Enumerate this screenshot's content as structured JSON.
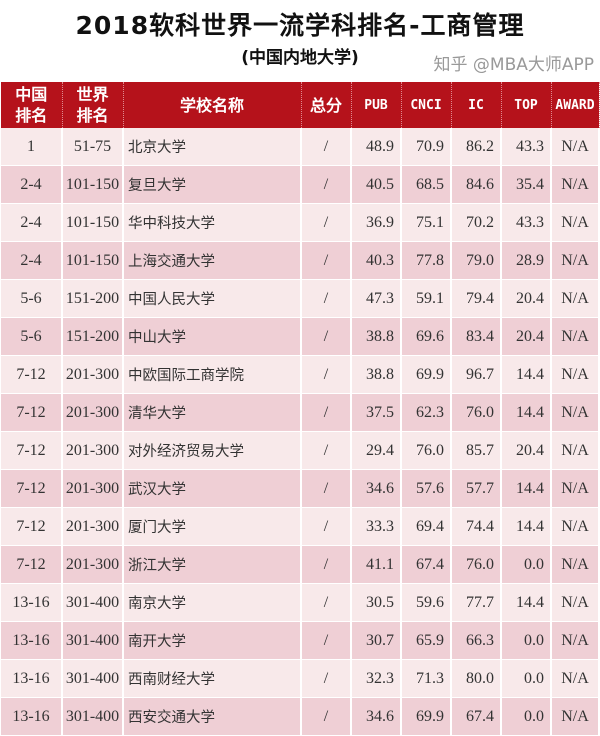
{
  "title": "2018软科世界一流学科排名-工商管理",
  "subtitle": "(中国内地大学)",
  "header": {
    "cn_rank_1": "中国",
    "cn_rank_2": "排名",
    "world_rank_1": "世界",
    "world_rank_2": "排名",
    "school": "学校名称",
    "total": "总分",
    "pub": "PUB",
    "cnci": "CNCI",
    "ic": "IC",
    "top": "TOP",
    "award": "AWARD"
  },
  "colors": {
    "header_bg": "#b5121b",
    "row_light": "#f8e9ea",
    "row_dark": "#efcfd5"
  },
  "rows": [
    [
      "1",
      "51-75",
      "北京大学",
      "/",
      "48.9",
      "70.9",
      "86.2",
      "43.3",
      "N/A"
    ],
    [
      "2-4",
      "101-150",
      "复旦大学",
      "/",
      "40.5",
      "68.5",
      "84.6",
      "35.4",
      "N/A"
    ],
    [
      "2-4",
      "101-150",
      "华中科技大学",
      "/",
      "36.9",
      "75.1",
      "70.2",
      "43.3",
      "N/A"
    ],
    [
      "2-4",
      "101-150",
      "上海交通大学",
      "/",
      "40.3",
      "77.8",
      "79.0",
      "28.9",
      "N/A"
    ],
    [
      "5-6",
      "151-200",
      "中国人民大学",
      "/",
      "47.3",
      "59.1",
      "79.4",
      "20.4",
      "N/A"
    ],
    [
      "5-6",
      "151-200",
      "中山大学",
      "/",
      "38.8",
      "69.6",
      "83.4",
      "20.4",
      "N/A"
    ],
    [
      "7-12",
      "201-300",
      "中欧国际工商学院",
      "/",
      "38.8",
      "69.9",
      "96.7",
      "14.4",
      "N/A"
    ],
    [
      "7-12",
      "201-300",
      "清华大学",
      "/",
      "37.5",
      "62.3",
      "76.0",
      "14.4",
      "N/A"
    ],
    [
      "7-12",
      "201-300",
      "对外经济贸易大学",
      "/",
      "29.4",
      "76.0",
      "85.7",
      "20.4",
      "N/A"
    ],
    [
      "7-12",
      "201-300",
      "武汉大学",
      "/",
      "34.6",
      "57.6",
      "57.7",
      "14.4",
      "N/A"
    ],
    [
      "7-12",
      "201-300",
      "厦门大学",
      "/",
      "33.3",
      "69.4",
      "74.4",
      "14.4",
      "N/A"
    ],
    [
      "7-12",
      "201-300",
      "浙江大学",
      "/",
      "41.1",
      "67.4",
      "76.0",
      "0.0",
      "N/A"
    ],
    [
      "13-16",
      "301-400",
      "南京大学",
      "/",
      "30.5",
      "59.6",
      "77.7",
      "14.4",
      "N/A"
    ],
    [
      "13-16",
      "301-400",
      "南开大学",
      "/",
      "30.7",
      "65.9",
      "66.3",
      "0.0",
      "N/A"
    ],
    [
      "13-16",
      "301-400",
      "西南财经大学",
      "/",
      "32.3",
      "71.3",
      "80.0",
      "0.0",
      "N/A"
    ],
    [
      "13-16",
      "301-400",
      "西安交通大学",
      "/",
      "34.6",
      "69.9",
      "67.4",
      "0.0",
      "N/A"
    ]
  ],
  "watermark": "知乎 @MBA大师APP"
}
